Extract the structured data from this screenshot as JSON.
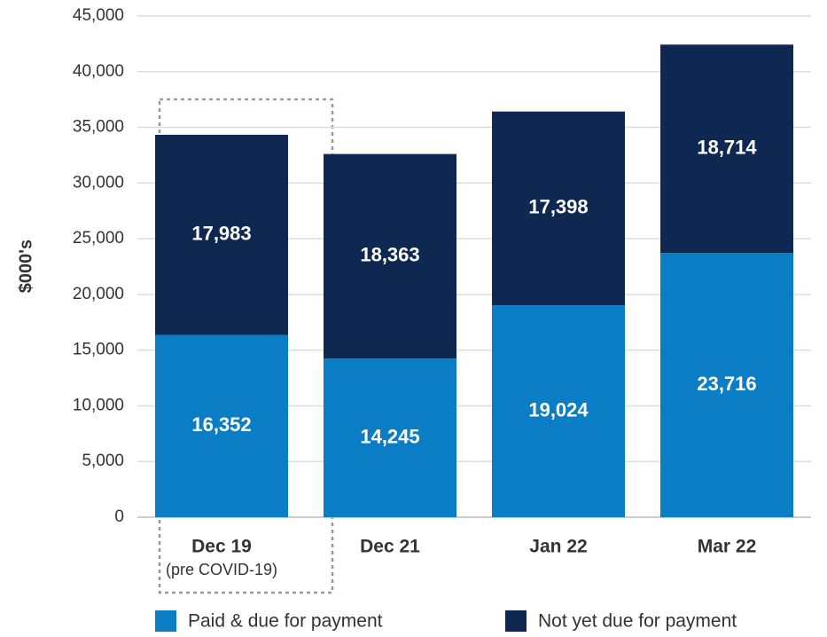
{
  "chart_data": {
    "type": "bar",
    "stacked": true,
    "y_label": "$000's",
    "categories": [
      "Dec 19",
      "Dec 21",
      "Jan 22",
      "Mar 22"
    ],
    "annotation": "(pre COVID-19)",
    "series": [
      {
        "name": "Paid & due for payment",
        "color": "#0b7dc4",
        "values": [
          16352,
          14245,
          19024,
          23716
        ],
        "value_labels": [
          "16,352",
          "14,245",
          "19,024",
          "23,716"
        ]
      },
      {
        "name": "Not yet due for payment",
        "color": "#0f2852",
        "values": [
          17983,
          18363,
          17398,
          18714
        ],
        "value_labels": [
          "17,983",
          "18,363",
          "17,398",
          "18,714"
        ]
      }
    ],
    "ylim": [
      0,
      45000
    ],
    "yticks": [
      0,
      {
        "value": 5000,
        "label": "5,000"
      },
      {
        "value": 10000,
        "label": "10,000"
      },
      {
        "value": 15000,
        "label": "15,000"
      },
      {
        "value": 20000,
        "label": "20,000"
      },
      {
        "value": 25000,
        "label": "25,000"
      },
      {
        "value": 30000,
        "label": "30,000"
      },
      {
        "value": 35000,
        "label": "35,000"
      },
      {
        "value": 40000,
        "label": "40,000"
      },
      {
        "value": 45000,
        "label": "45,000"
      }
    ],
    "grid": true
  }
}
